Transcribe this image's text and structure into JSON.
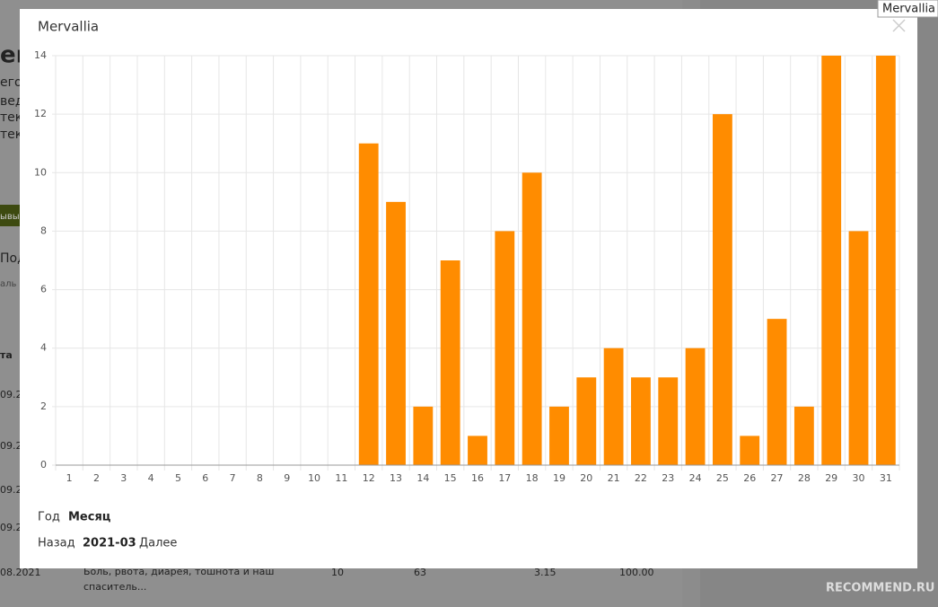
{
  "modal": {
    "title": "Mervallia",
    "tooltip": "Mervallia",
    "year_label": "Год",
    "month_label": "Месяц",
    "prev": "Назад",
    "current": "2021-03",
    "next": "Далее"
  },
  "background": {
    "heading": "ей",
    "lines": [
      "его-",
      "вед",
      "тек",
      "тек"
    ],
    "button": "ывы",
    "tab": "Под",
    "tab_sub": "аль",
    "column": "та",
    "dates": [
      "09.2",
      "09.2",
      "09.2",
      "09.2",
      "08.2021"
    ],
    "row_text": [
      "Боль, рвота, диарея, тошнота и наш",
      "спаситель..."
    ],
    "row_nums": [
      "10",
      "63",
      "3.15",
      "100.00"
    ],
    "watermark": "RECOMMEND.RU"
  },
  "chart_data": {
    "type": "bar",
    "categories": [
      "1",
      "2",
      "3",
      "4",
      "5",
      "6",
      "7",
      "8",
      "9",
      "10",
      "11",
      "12",
      "13",
      "14",
      "15",
      "16",
      "17",
      "18",
      "19",
      "20",
      "21",
      "22",
      "23",
      "24",
      "25",
      "26",
      "27",
      "28",
      "29",
      "30",
      "31"
    ],
    "values": [
      0,
      0,
      0,
      0,
      0,
      0,
      0,
      0,
      0,
      0,
      0,
      11,
      9,
      2,
      7,
      1,
      8,
      10,
      2,
      3,
      4,
      3,
      3,
      4,
      12,
      1,
      5,
      2,
      14,
      8,
      14
    ],
    "color": "#ff8c00",
    "ylim": [
      0,
      14
    ],
    "yticks": [
      0,
      2,
      4,
      6,
      8,
      10,
      12,
      14
    ],
    "grid": true
  }
}
